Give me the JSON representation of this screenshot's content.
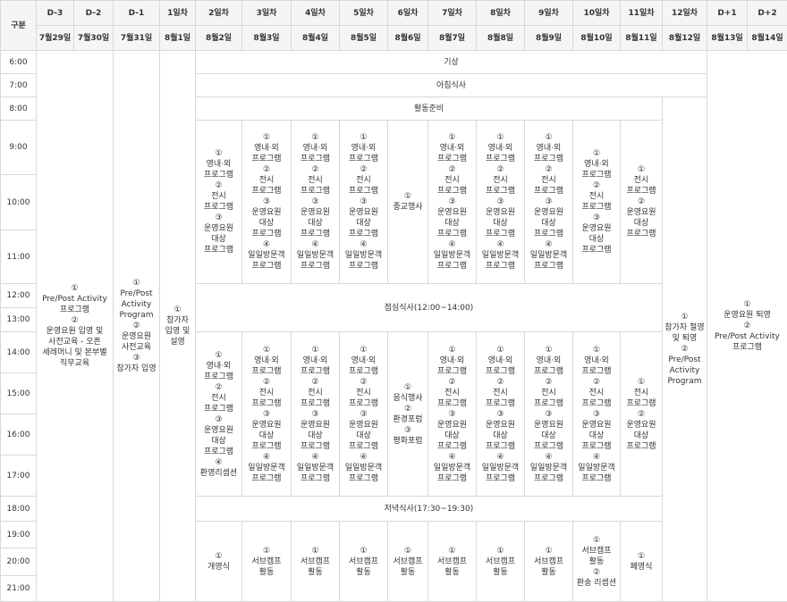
{
  "header": {
    "corner": "구분",
    "days": [
      "D-3",
      "D-2",
      "D-1",
      "1일차",
      "2일차",
      "3일차",
      "4일차",
      "5일차",
      "6일차",
      "7일차",
      "8일차",
      "9일차",
      "10일차",
      "11일차",
      "12일차",
      "D+1",
      "D+2"
    ],
    "dates": [
      "7월29일",
      "7월30일",
      "7월31일",
      "8월1일",
      "8월2일",
      "8월3일",
      "8월4일",
      "8월5일",
      "8월6일",
      "8월7일",
      "8월8일",
      "8월9일",
      "8월10일",
      "8월11일",
      "8월12일",
      "8월13일",
      "8월14일"
    ]
  },
  "times": [
    "6:00",
    "7:00",
    "8:00",
    "9:00",
    "10:00",
    "11:00",
    "12:00",
    "13:00",
    "14:00",
    "15:00",
    "16:00",
    "17:00",
    "18:00",
    "19:00",
    "20:00",
    "21:00"
  ],
  "spans": {
    "wake": "기상",
    "breakfast": "아침식사",
    "prep": "활동준비",
    "lunch": "점심식사(12:00~14:00)",
    "dinner": "저녁식사(17:30~19:30)"
  },
  "columns": {
    "pre": [
      {
        "no": "①",
        "text": "Pre/Post Activity 프로그램"
      },
      {
        "no": "②",
        "text": "운영요원 입영 및 사전교육 - 오픈 세레머니 및 본부별 직무교육"
      }
    ],
    "d1": [
      {
        "no": "①",
        "text": "Pre/Post Activity Program"
      },
      {
        "no": "②",
        "text": "운영요원 사전교육"
      },
      {
        "no": "③",
        "text": "참가자 입영"
      }
    ],
    "day1": [
      {
        "no": "①",
        "text": "참가자 입영 및 설영"
      }
    ],
    "day12": [
      {
        "no": "①",
        "text": "참가자 철영 및 퇴영"
      },
      {
        "no": "②",
        "text": "Pre/Post Activity Program"
      }
    ],
    "post": [
      {
        "no": "①",
        "text": "운영요원 퇴영"
      },
      {
        "no": "②",
        "text": "Pre/Post Activity 프로그램"
      }
    ]
  },
  "morning": [
    [
      {
        "no": "①",
        "text": "영내·외 프로그램"
      },
      {
        "no": "②",
        "text": "전시 프로그램"
      },
      {
        "no": "③",
        "text": "운영요원 대상 프로그램"
      }
    ],
    [
      {
        "no": "①",
        "text": "영내·외 프로그램"
      },
      {
        "no": "②",
        "text": "전시 프로그램"
      },
      {
        "no": "③",
        "text": "운영요원 대상 프로그램"
      },
      {
        "no": "④",
        "text": "일일방문객 프로그램"
      }
    ],
    [
      {
        "no": "①",
        "text": "영내·외 프로그램"
      },
      {
        "no": "②",
        "text": "전시 프로그램"
      },
      {
        "no": "③",
        "text": "운영요원 대상 프로그램"
      },
      {
        "no": "④",
        "text": "일일방문객 프로그램"
      }
    ],
    [
      {
        "no": "①",
        "text": "영내·외 프로그램"
      },
      {
        "no": "②",
        "text": "전시 프로그램"
      },
      {
        "no": "③",
        "text": "운영요원 대상 프로그램"
      },
      {
        "no": "④",
        "text": "일일방문객 프로그램"
      }
    ],
    [
      {
        "no": "①",
        "text": "종교행사"
      }
    ],
    [
      {
        "no": "①",
        "text": "영내·외 프로그램"
      },
      {
        "no": "②",
        "text": "전시 프로그램"
      },
      {
        "no": "③",
        "text": "운영요원 대상 프로그램"
      },
      {
        "no": "④",
        "text": "일일방문객 프로그램"
      }
    ],
    [
      {
        "no": "①",
        "text": "영내·외 프로그램"
      },
      {
        "no": "②",
        "text": "전시 프로그램"
      },
      {
        "no": "③",
        "text": "운영요원 대상 프로그램"
      },
      {
        "no": "④",
        "text": "일일방문객 프로그램"
      }
    ],
    [
      {
        "no": "①",
        "text": "영내·외 프로그램"
      },
      {
        "no": "②",
        "text": "전시 프로그램"
      },
      {
        "no": "③",
        "text": "운영요원 대상 프로그램"
      },
      {
        "no": "④",
        "text": "일일방문객 프로그램"
      }
    ],
    [
      {
        "no": "①",
        "text": "영내·외 프로그램"
      },
      {
        "no": "②",
        "text": "전시 프로그램"
      },
      {
        "no": "③",
        "text": "운영요원 대상 프로그램"
      }
    ],
    [
      {
        "no": "①",
        "text": "전시 프로그램"
      },
      {
        "no": "②",
        "text": "운영요원 대상 프로그램"
      }
    ]
  ],
  "afternoon": [
    [
      {
        "no": "①",
        "text": "영내·외 프로그램"
      },
      {
        "no": "②",
        "text": "전시 프로그램"
      },
      {
        "no": "③",
        "text": "운영요원 대상 프로그램"
      },
      {
        "no": "④",
        "text": "환영리셉션"
      }
    ],
    [
      {
        "no": "①",
        "text": "영내·외 프로그램"
      },
      {
        "no": "②",
        "text": "전시 프로그램"
      },
      {
        "no": "③",
        "text": "운영요원 대상 프로그램"
      },
      {
        "no": "④",
        "text": "일일방문객 프로그램"
      }
    ],
    [
      {
        "no": "①",
        "text": "영내·외 프로그램"
      },
      {
        "no": "②",
        "text": "전시 프로그램"
      },
      {
        "no": "③",
        "text": "운영요원 대상 프로그램"
      },
      {
        "no": "④",
        "text": "일일방문객 프로그램"
      }
    ],
    [
      {
        "no": "①",
        "text": "영내·외 프로그램"
      },
      {
        "no": "②",
        "text": "전시 프로그램"
      },
      {
        "no": "③",
        "text": "운영요원 대상 프로그램"
      },
      {
        "no": "④",
        "text": "일일방문객 프로그램"
      }
    ],
    [
      {
        "no": "①",
        "text": "음식행사"
      },
      {
        "no": "②",
        "text": "환경포럼"
      },
      {
        "no": "③",
        "text": "평화포럼"
      }
    ],
    [
      {
        "no": "①",
        "text": "영내·외 프로그램"
      },
      {
        "no": "②",
        "text": "전시 프로그램"
      },
      {
        "no": "③",
        "text": "운영요원 대상 프로그램"
      },
      {
        "no": "④",
        "text": "일일방문객 프로그램"
      }
    ],
    [
      {
        "no": "①",
        "text": "영내·외 프로그램"
      },
      {
        "no": "②",
        "text": "전시 프로그램"
      },
      {
        "no": "③",
        "text": "운영요원 대상 프로그램"
      },
      {
        "no": "④",
        "text": "일일방문객 프로그램"
      }
    ],
    [
      {
        "no": "①",
        "text": "영내·외 프로그램"
      },
      {
        "no": "②",
        "text": "전시 프로그램"
      },
      {
        "no": "③",
        "text": "운영요원 대상 프로그램"
      },
      {
        "no": "④",
        "text": "일일방문객 프로그램"
      }
    ],
    [
      {
        "no": "①",
        "text": "영내·외 프로그램"
      },
      {
        "no": "②",
        "text": "전시 프로그램"
      },
      {
        "no": "③",
        "text": "운영요원 대상 프로그램"
      },
      {
        "no": "④",
        "text": "일일방문객 프로그램"
      }
    ],
    [
      {
        "no": "①",
        "text": "전시 프로그램"
      },
      {
        "no": "②",
        "text": "운영요원 대상 프로그램"
      }
    ]
  ],
  "evening": [
    [
      {
        "no": "①",
        "text": "개영식"
      }
    ],
    [
      {
        "no": "①",
        "text": "서브캠프 활동"
      }
    ],
    [
      {
        "no": "①",
        "text": "서브캠프 활동"
      }
    ],
    [
      {
        "no": "①",
        "text": "서브캠프 활동"
      }
    ],
    [
      {
        "no": "①",
        "text": "서브캠프 활동"
      }
    ],
    [
      {
        "no": "①",
        "text": "서브캠프 활동"
      }
    ],
    [
      {
        "no": "①",
        "text": "서브캠프 활동"
      }
    ],
    [
      {
        "no": "①",
        "text": "서브캠프 활동"
      }
    ],
    [
      {
        "no": "①",
        "text": "서브캠프 활동"
      },
      {
        "no": "②",
        "text": "환송 리셉션"
      }
    ],
    [
      {
        "no": "①",
        "text": "폐영식"
      }
    ]
  ]
}
